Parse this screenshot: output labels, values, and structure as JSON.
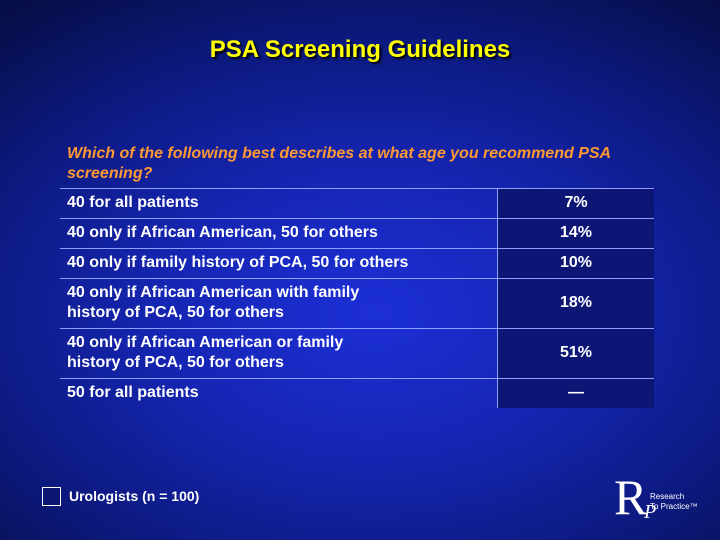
{
  "slide": {
    "title": "PSA Screening Guidelines",
    "question": "Which of the following best describes at what age you recommend PSA screening?"
  },
  "table": {
    "rows": [
      {
        "option_lines": [
          "40 for all patients"
        ],
        "value": "7%"
      },
      {
        "option_lines": [
          "40 only if African American, 50 for others"
        ],
        "value": "14%"
      },
      {
        "option_lines": [
          "40 only if family history of PCA, 50 for others"
        ],
        "value": "10%"
      },
      {
        "option_lines": [
          "40 only if African American with family",
          "history of PCA, 50 for others"
        ],
        "value": "18%"
      },
      {
        "option_lines": [
          "40 only if African American or family",
          "history of PCA, 50 for others"
        ],
        "value": "51%"
      },
      {
        "option_lines": [
          "50 for all patients"
        ],
        "value": "—"
      }
    ]
  },
  "legend": {
    "label": "Urologists  (n = 100)"
  },
  "logo": {
    "letter_r": "R",
    "letter_p": "P",
    "line1": "Research",
    "line2": "To Practice™"
  }
}
